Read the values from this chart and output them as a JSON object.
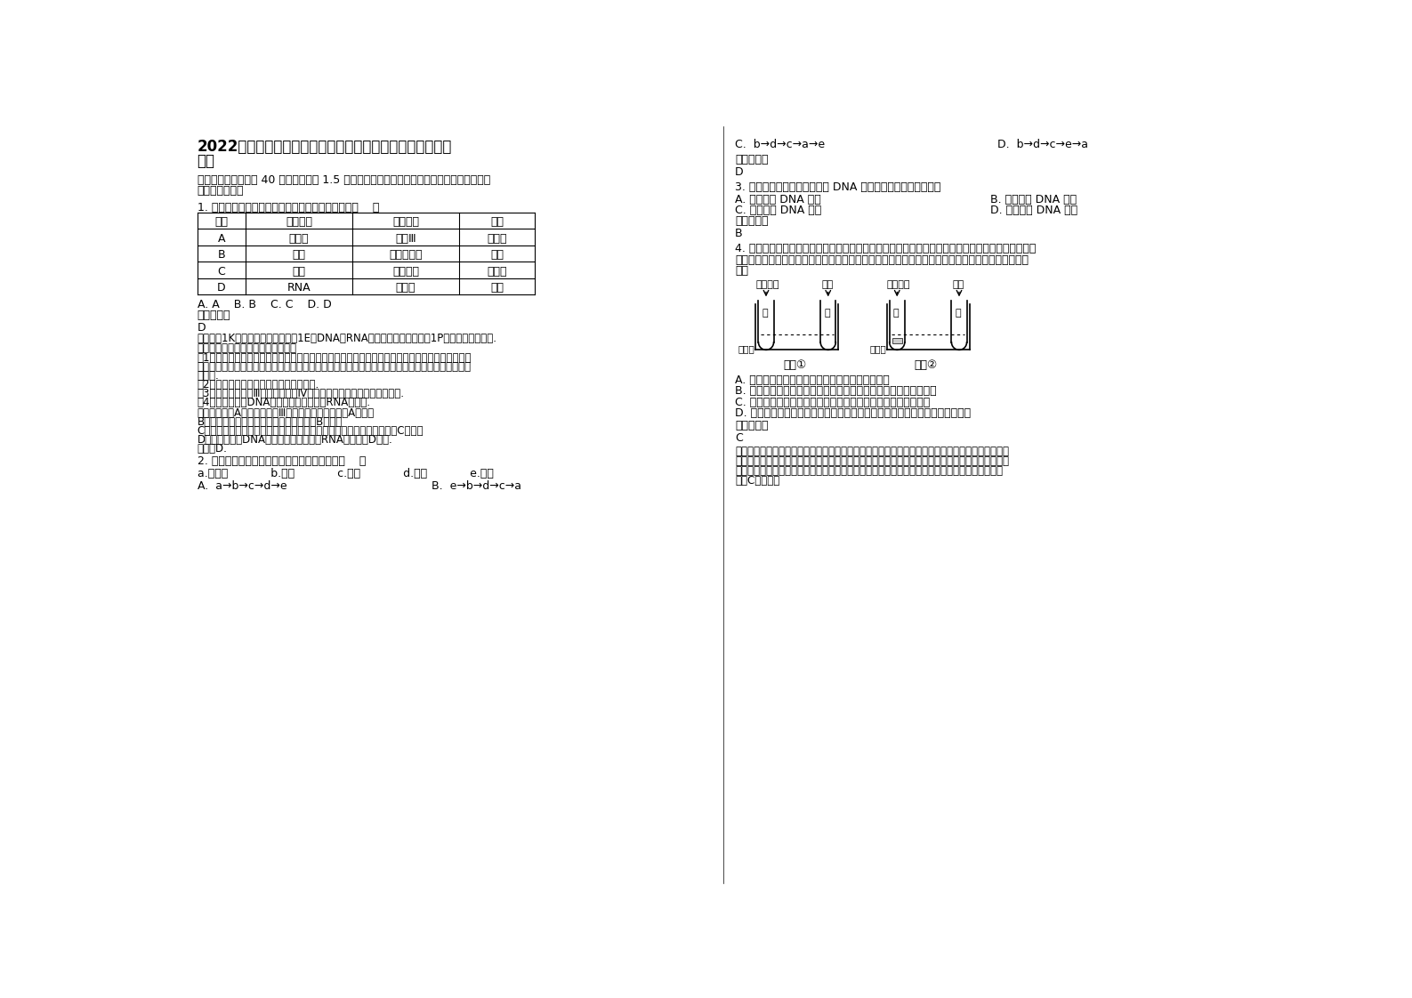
{
  "bg_color": "#ffffff",
  "title_line1": "2022年河北省唐山市工业职业高级中学高二生物模拟试卷含",
  "title_line2": "解析",
  "section1_line1": "一、选择题（本题共 40 小题，每小题 1.5 分。在每小题给出的四个选项中，只有一项是符合",
  "section1_line2": "题目要求的。）",
  "q1": "1. 下列可用于鉴定脂肪的试剂及反应呈现的颜色是（    ）",
  "table_headers": [
    "选项",
    "检测物质",
    "使用试剂",
    "颜色"
  ],
  "table_rows": [
    [
      "A",
      "葡萄糖",
      "苏丹Ⅲ",
      "橘黄色"
    ],
    [
      "B",
      "淀粉",
      "双缩脲试剂",
      "紫色"
    ],
    [
      "C",
      "脂肪",
      "斐林试剂",
      "砖红色"
    ],
    [
      "D",
      "RNA",
      "吡罗红",
      "红色"
    ]
  ],
  "q1_options": "A. A    B. B    C. C    D. D",
  "ref_ans": "参考答案：",
  "q1_ans": "D",
  "q1_analysis": "【考点】1K：检测还原糖的实验；1E：DNA、RNA在细胞中的分布实验；1P：检测脂肪的实验.",
  "q1_analysis2": "【分析】生物组织中化合物的鉴定：",
  "q1_d1a": "（1）斐林试剂可用于鉴定还原糖，在水浴加热的条件下，溶液的颜色变化为砖红色（沉淀）。斐林",
  "q1_d1b": "试剂只能检验生物组织中还原糖（如葡萄糖、麦芽糖、果糖）存在与否，而不能鉴定非还原性糖（如",
  "q1_d1c": "淀粉）.",
  "q1_detail2": "（2）蛋白质可与双缩脲试剂产生紫色反应.",
  "q1_detail3": "（3）脂肪可用苏丹Ⅲ染液（或苏丹Ⅳ染液）鉴定，呈橘黄色（或红色）.",
  "q1_detail4": "（4）甲基绿能使DNA呈绿色，吡罗红能使RNA呈红色.",
  "q1_jieda": "【解答】解：A、脂肪用苏丹Ⅲ染液鉴定，呈橘黄色，A错误；",
  "q1_jieda2": "B、蛋白质可与双缩脲试剂产生紫色反应，B错误；",
  "q1_jieda3": "C、斐林试剂可用于鉴定还原糖，在水浴加热的条件下产生砖红色沉淀，C错误；",
  "q1_jieda4": "D、甲基绿能使DNA呈绿色，吡罗红能使RNA呈红色，D正确.",
  "q1_jieda5": "故选：D.",
  "q2": "2. 制备牛肉膏蛋白胨固体培养基的操作步骤是（    ）",
  "q2_steps": "a.倒平板            b.计算            c.溶化            d.称量            e.灭菌",
  "q2_optA": "A.  a→b→c→d→e",
  "q2_optB": "B.  e→b→d→c→a",
  "q2_optC": "C.  b→d→c→a→e",
  "q2_optD": "D.  b→d→c→e→a",
  "right_ref": "参考答案：",
  "right_ans2": "D",
  "q3": "3. 一条染色单体含有一个双链 DNA 分子，那么一个四分体含有",
  "q3_optA": "A. 两个双链 DNA 分子",
  "q3_optB": "B. 四个双链 DNA 分子",
  "q3_optC": "C. 一个双链 DNA 分子",
  "q3_optD": "D. 一个单链 DNA 分子",
  "q3_ref": "参考答案：",
  "q3_ans": "B",
  "q4_line1": "4. 为了验证猪笼草分泌液中有蛋白酶，某学生设计了两组实验，如图所示。在适宜温度中水浴一段时",
  "q4_line2": "间后，甲乙试管中加入适量的双缩脲试剂，丙丁试管中不加任何试剂。下列对实验现象的预测最可能",
  "q4_line3": "的是",
  "q4_optA": "A. 甲和乙中溶液都呈紫色；丙和丁中蛋白块都消失",
  "q4_optB": "B. 甲和乙中溶液都不呈紫色；丙中蛋白块消失，丁中蛋白块不消失",
  "q4_optC": "C. 甲和乙中溶液都呈紫色；丙中蛋白块消失，丁中蛋白块不消失",
  "q4_optD": "D. 甲中溶液不呈紫色，乙中溶液呈紫色；丙中蛋白块消失，丁中蛋白块不消失",
  "q4_ref": "参考答案：",
  "q4_ans": "C",
  "q4_exp1": "甲试管中加入的分泌液含有蛋白酶，蛋白酶可以分解蛋白质，但蛋白酶本质是蛋白质，遇双缩脲试剂",
  "q4_exp2": "变紫色；乙试管中加水，对蛋白质没有分解作用，溶液呈紫色；丙试管中加入分泌液含有蛋白酶，蛋",
  "q4_exp3": "白酶分解蛋白块，蛋白块消失；丁试管中加入水，对蛋白块没有分解作用，蛋白块不消失。由上可",
  "q4_exp4": "见，C项正确。"
}
